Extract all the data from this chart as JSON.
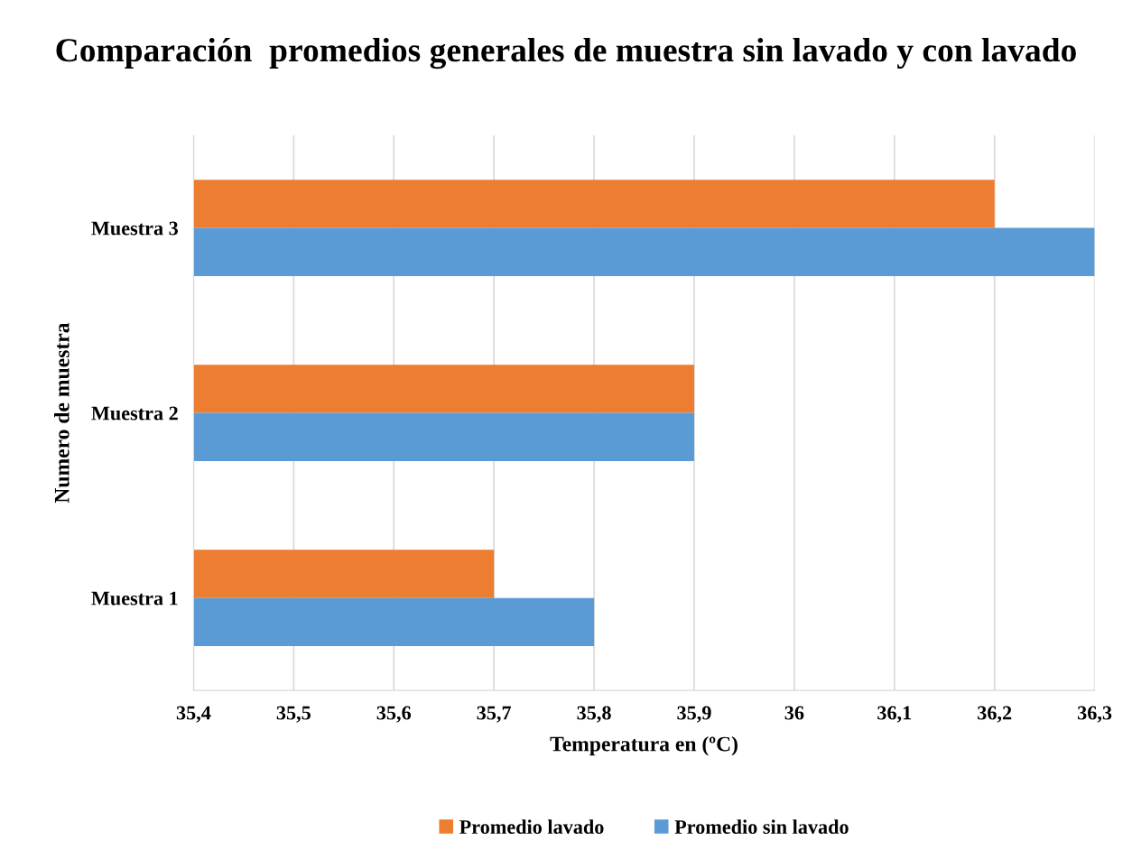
{
  "chart_data": {
    "type": "bar",
    "orientation": "horizontal",
    "title": "Comparación  promedios generales de muestra sin lavado y con lavado",
    "xlabel": "Temperatura en (ºC)",
    "ylabel": "Numero de muestra",
    "categories": [
      "Muestra 3",
      "Muestra 2",
      "Muestra 1"
    ],
    "series": [
      {
        "name": "Promedio lavado",
        "color": "#ed7d31",
        "values": [
          36.2,
          35.9,
          35.7
        ]
      },
      {
        "name": "Promedio sin lavado",
        "color": "#5b9bd5",
        "values": [
          36.3,
          35.9,
          35.8
        ]
      }
    ],
    "xlim": [
      35.4,
      36.3
    ],
    "xticks": [
      {
        "value": 35.4,
        "label": "35,4"
      },
      {
        "value": 35.5,
        "label": "35,5"
      },
      {
        "value": 35.6,
        "label": "35,6"
      },
      {
        "value": 35.7,
        "label": "35,7"
      },
      {
        "value": 35.8,
        "label": "35,8"
      },
      {
        "value": 35.9,
        "label": "35,9"
      },
      36,
      {
        "value": 36.1,
        "label": "36,1"
      },
      {
        "value": 36.2,
        "label": "36,2"
      },
      {
        "value": 36.3,
        "label": "36,3"
      }
    ],
    "grid": "x",
    "legend": "bottom"
  }
}
